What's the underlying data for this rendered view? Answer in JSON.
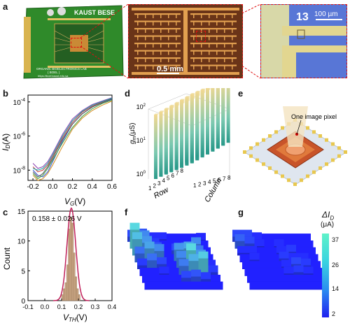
{
  "panels": {
    "a": {
      "label": "a",
      "board_brand": "KAUST BESE",
      "board_lab_line1": "ORGANIC BIOELECTRONICS LAB",
      "board_lab_line2": "( BOEL )",
      "board_url": "https://boel.kaust.edu.sa",
      "scale_mid": "0.5 mm",
      "device_number": "13",
      "scale_right": "100 µm"
    },
    "b": {
      "label": "b"
    },
    "c": {
      "label": "c",
      "annotation": "0.158 ± 0.026 V"
    },
    "d": {
      "label": "d"
    },
    "e": {
      "label": "e",
      "callout": "One image pixel"
    },
    "f": {
      "label": "f"
    },
    "g": {
      "label": "g"
    }
  },
  "colors": {
    "accent_red": "#e01010",
    "pcb_green": "#2f8a2a",
    "gold": "#c9a24a",
    "heat_blue": "#1f1fef",
    "heat_cyan": "#5ff2c8"
  },
  "chart_data": [
    {
      "type": "line",
      "panel": "b",
      "xlabel": "V",
      "xlabel_sub": "G",
      "xunit": "(V)",
      "ylabel": "I",
      "ylabel_sub": "D",
      "yunit": "(A)",
      "xlim": [
        -0.25,
        0.6
      ],
      "ylog": true,
      "ylim_exp": [
        -8.6,
        -3.6
      ],
      "x_ticks": [
        "-0.2",
        "0.0",
        "0.2",
        "0.4",
        "0.6"
      ],
      "y_ticks": [
        {
          "base": "10",
          "exp": "-4"
        },
        {
          "base": "10",
          "exp": "-6"
        },
        {
          "base": "10",
          "exp": "-8"
        }
      ],
      "curves": [
        {
          "color": "#2f4fd0",
          "x": [
            -0.2,
            -0.15,
            -0.1,
            -0.05,
            0.0,
            0.1,
            0.2,
            0.3,
            0.4,
            0.5,
            0.6
          ],
          "y": [
            -8.0,
            -8.3,
            -8.4,
            -8.1,
            -7.5,
            -6.3,
            -5.3,
            -4.7,
            -4.3,
            -4.05,
            -3.85
          ]
        },
        {
          "color": "#c43d3d",
          "x": [
            -0.2,
            -0.15,
            -0.1,
            -0.05,
            0.0,
            0.1,
            0.2,
            0.3,
            0.4,
            0.5,
            0.6
          ],
          "y": [
            -7.8,
            -8.1,
            -8.0,
            -7.7,
            -7.2,
            -6.1,
            -5.2,
            -4.6,
            -4.25,
            -4.0,
            -3.8
          ]
        },
        {
          "color": "#3c9d3c",
          "x": [
            -0.2,
            -0.15,
            -0.1,
            -0.05,
            0.0,
            0.1,
            0.2,
            0.3,
            0.4,
            0.5,
            0.6
          ],
          "y": [
            -8.2,
            -8.5,
            -8.3,
            -7.9,
            -7.4,
            -6.4,
            -5.5,
            -4.85,
            -4.4,
            -4.1,
            -3.9
          ]
        },
        {
          "color": "#8a3cb0",
          "x": [
            -0.2,
            -0.15,
            -0.1,
            -0.05,
            0.0,
            0.1,
            0.2,
            0.3,
            0.4,
            0.5,
            0.6
          ],
          "y": [
            -7.6,
            -7.9,
            -7.8,
            -7.5,
            -7.0,
            -5.9,
            -5.0,
            -4.5,
            -4.15,
            -3.95,
            -3.75
          ]
        },
        {
          "color": "#d38a1c",
          "x": [
            -0.2,
            -0.15,
            -0.1,
            -0.05,
            0.0,
            0.1,
            0.2,
            0.3,
            0.4,
            0.5,
            0.6
          ],
          "y": [
            -8.3,
            -8.6,
            -8.5,
            -8.2,
            -7.7,
            -6.6,
            -5.6,
            -4.95,
            -4.5,
            -4.2,
            -3.95
          ]
        },
        {
          "color": "#1aa6a6",
          "x": [
            -0.2,
            -0.15,
            -0.1,
            -0.05,
            0.0,
            0.1,
            0.2,
            0.3,
            0.4,
            0.5,
            0.6
          ],
          "y": [
            -7.9,
            -8.0,
            -7.9,
            -7.6,
            -7.1,
            -6.0,
            -5.1,
            -4.55,
            -4.2,
            -3.98,
            -3.78
          ]
        },
        {
          "color": "#555555",
          "x": [
            -0.2,
            -0.15,
            -0.1,
            -0.05,
            0.0,
            0.1,
            0.2,
            0.3,
            0.4,
            0.5,
            0.6
          ],
          "y": [
            -8.1,
            -8.4,
            -8.2,
            -7.8,
            -7.3,
            -6.2,
            -5.3,
            -4.7,
            -4.3,
            -4.05,
            -3.82
          ]
        }
      ]
    },
    {
      "type": "bar",
      "panel": "c",
      "xlabel": "V",
      "xlabel_sub": "TH",
      "xunit": "(V)",
      "ylabel": "Count",
      "xlim": [
        -0.1,
        0.4
      ],
      "ylim": [
        0,
        15
      ],
      "x_ticks": [
        "-0.1",
        "0.0",
        "0.1",
        "0.2",
        "0.3",
        "0.4"
      ],
      "y_ticks": [
        "0",
        "5",
        "10",
        "15"
      ],
      "bins": [
        0.1,
        0.11,
        0.12,
        0.13,
        0.14,
        0.15,
        0.16,
        0.17,
        0.18,
        0.19,
        0.2
      ],
      "values": [
        1,
        2,
        3,
        6,
        12,
        14,
        13,
        8,
        4,
        2,
        1
      ],
      "fit_mean": 0.158,
      "fit_sd": 0.026
    },
    {
      "type": "bar",
      "panel": "d",
      "ylabel": "g",
      "ylabel_sub": "m",
      "yunit": "(μS)",
      "xlabel": "Row",
      "zlabel": "Column",
      "z_ticks": [
        {
          "base": "10",
          "exp": "2"
        },
        {
          "base": "10",
          "exp": "1"
        },
        {
          "base": "10",
          "exp": "0"
        }
      ],
      "row_ticks": [
        "1",
        "2",
        "3",
        "4",
        "5",
        "6",
        "7",
        "8"
      ],
      "col_ticks": [
        "1",
        "2",
        "3",
        "4",
        "5",
        "6",
        "7",
        "8"
      ],
      "note": "8×8 array, all bars near 10^2"
    },
    {
      "type": "heatmap",
      "panel": "f",
      "grid": [
        [
          8,
          10,
          4,
          4,
          2,
          2,
          2,
          3
        ],
        [
          30,
          18,
          6,
          2,
          2,
          2,
          2,
          2
        ],
        [
          26,
          20,
          10,
          2,
          8,
          10,
          18,
          2
        ],
        [
          14,
          22,
          18,
          2,
          20,
          22,
          16,
          2
        ],
        [
          6,
          14,
          8,
          2,
          18,
          30,
          20,
          4
        ],
        [
          2,
          2,
          4,
          2,
          16,
          24,
          28,
          6
        ],
        [
          2,
          2,
          2,
          2,
          8,
          10,
          6,
          2
        ],
        [
          2,
          2,
          2,
          2,
          2,
          2,
          2,
          2
        ]
      ]
    },
    {
      "type": "heatmap",
      "panel": "g",
      "grid": [
        [
          8,
          8,
          4,
          2,
          2,
          2,
          2,
          2
        ],
        [
          12,
          8,
          4,
          2,
          4,
          2,
          2,
          2
        ],
        [
          4,
          4,
          2,
          2,
          4,
          6,
          2,
          2
        ],
        [
          2,
          4,
          2,
          2,
          6,
          4,
          4,
          2
        ],
        [
          2,
          2,
          2,
          2,
          4,
          8,
          6,
          2
        ],
        [
          2,
          2,
          2,
          2,
          4,
          6,
          4,
          2
        ],
        [
          2,
          2,
          2,
          2,
          2,
          2,
          2,
          2
        ],
        [
          2,
          2,
          2,
          2,
          2,
          2,
          2,
          2
        ]
      ]
    },
    {
      "type": "colorbar",
      "panel": "fg",
      "label": "ΔI",
      "label_sub": "D",
      "unit": "(μA)",
      "ticks": [
        "37",
        "26",
        "14",
        "2"
      ],
      "range": [
        2,
        37
      ]
    }
  ]
}
